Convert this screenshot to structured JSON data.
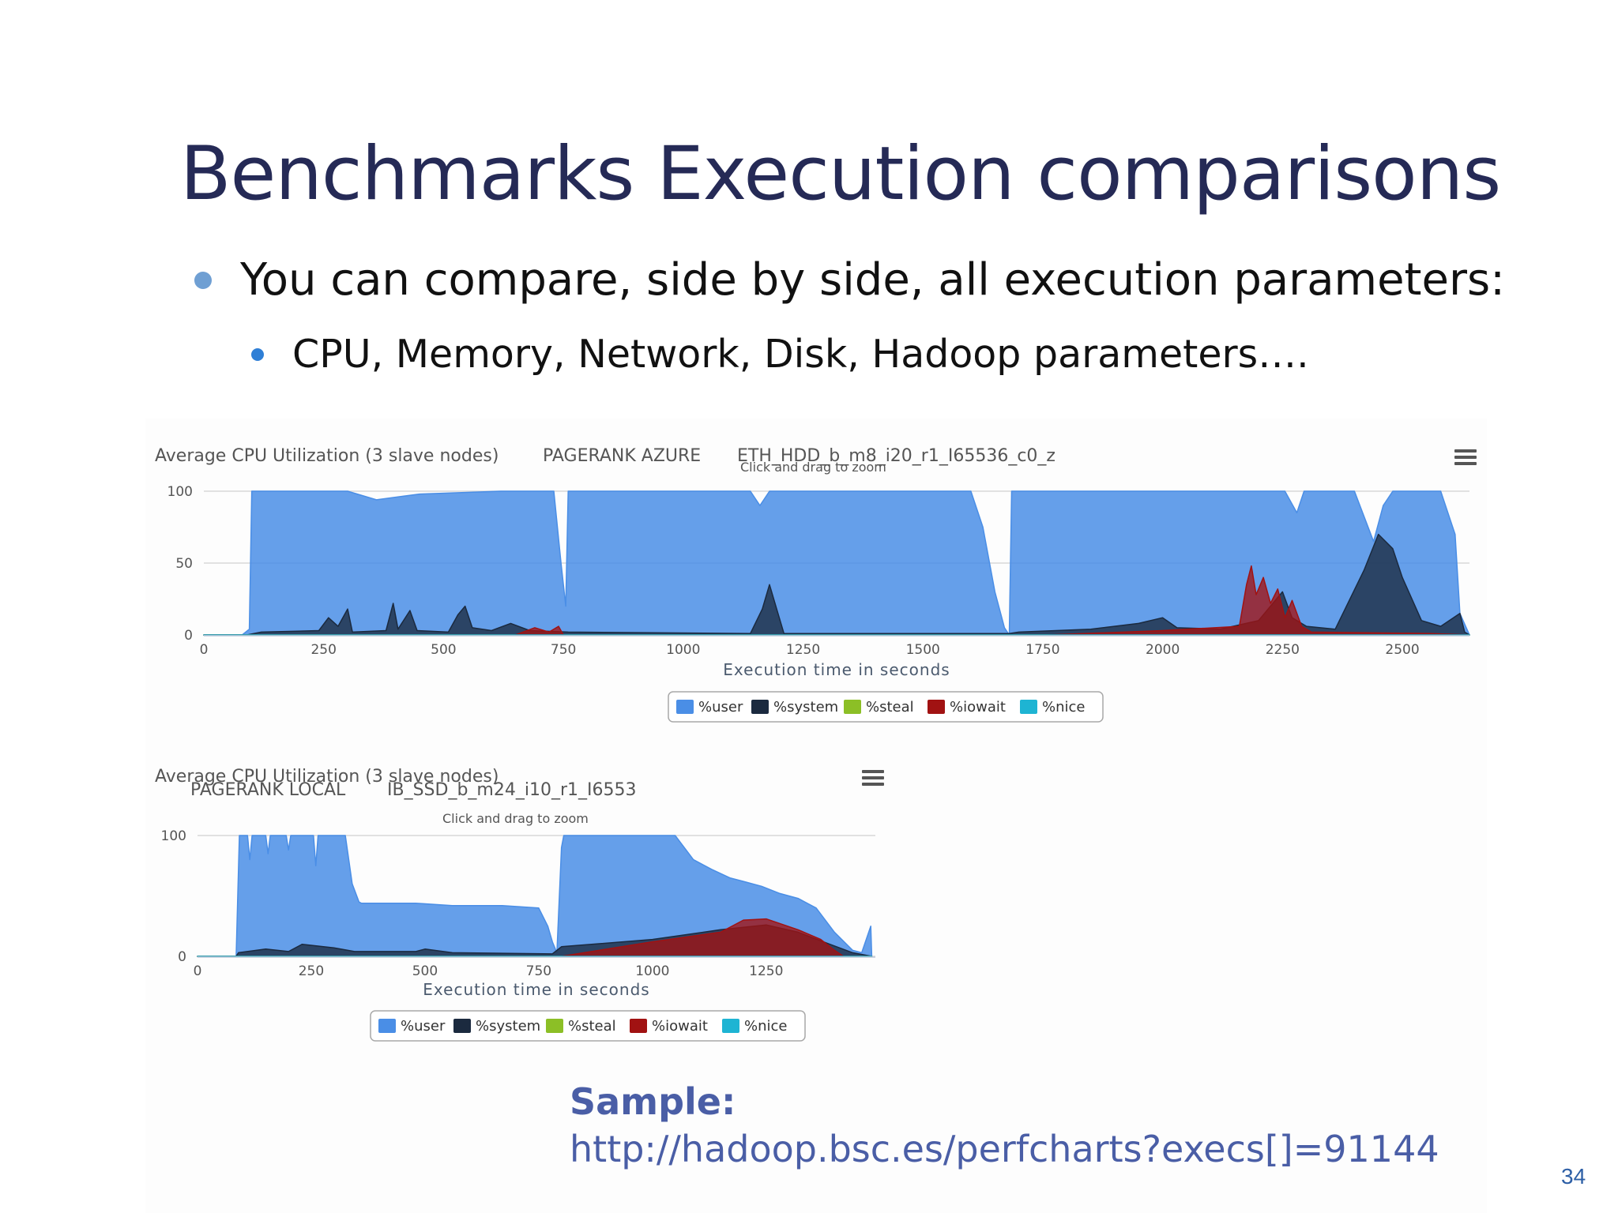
{
  "slide": {
    "title": "Benchmarks Execution comparisons",
    "bullet_1": "You can compare, side by side, all execution parameters:",
    "bullet_2": "CPU, Memory, Network, Disk, Hadoop parameters….",
    "sample_label": "Sample:",
    "sample_url": "http://hadoop.bsc.es/perfcharts?execs[]=91144",
    "page_number": "34"
  },
  "colors": {
    "title": "#252a56",
    "bullet_1_marker": "#6f9fd3",
    "bullet_2_marker": "#2f7fd6",
    "user": "#4a8ee6",
    "system": "#1b2a3f",
    "steal": "#8cbf26",
    "iowait": "#a11212",
    "nice": "#1eb4d3",
    "link": "#4a5ea6"
  },
  "chart_data": [
    {
      "type": "area",
      "title": "Average CPU Utilization (3 slave nodes)",
      "subtitle_benchmark": "PAGERANK AZURE",
      "subtitle_exec": "ETH_HDD_b_m8_i20_r1_I65536_c0_z",
      "zoom_hint": "Click and drag to zoom",
      "xlabel": "Execution time in seconds",
      "ylabel": "",
      "xlim": [
        0,
        2640
      ],
      "ylim": [
        0,
        100
      ],
      "x_ticks": [
        "0",
        "250",
        "500",
        "750",
        "1000",
        "1250",
        "1500",
        "1750",
        "2000",
        "2250",
        "2500"
      ],
      "y_ticks": [
        "0",
        "50",
        "100"
      ],
      "stacked": false,
      "legend": [
        "%user",
        "%system",
        "%steal",
        "%iowait",
        "%nice"
      ],
      "legend_position": "bottom-center",
      "grid": true,
      "series": [
        {
          "name": "%user",
          "points": [
            [
              0,
              0
            ],
            [
              80,
              0
            ],
            [
              95,
              4
            ],
            [
              100,
              100
            ],
            [
              300,
              100
            ],
            [
              360,
              94
            ],
            [
              450,
              98
            ],
            [
              620,
              100
            ],
            [
              730,
              100
            ],
            [
              745,
              50
            ],
            [
              755,
              20
            ],
            [
              760,
              100
            ],
            [
              1140,
              100
            ],
            [
              1160,
              90
            ],
            [
              1180,
              100
            ],
            [
              1600,
              100
            ],
            [
              1625,
              75
            ],
            [
              1650,
              30
            ],
            [
              1670,
              5
            ],
            [
              1680,
              0
            ],
            [
              1685,
              100
            ],
            [
              1750,
              100
            ],
            [
              2200,
              100
            ],
            [
              2255,
              100
            ],
            [
              2280,
              85
            ],
            [
              2295,
              100
            ],
            [
              2400,
              100
            ],
            [
              2440,
              65
            ],
            [
              2460,
              90
            ],
            [
              2480,
              100
            ],
            [
              2580,
              100
            ],
            [
              2610,
              70
            ],
            [
              2620,
              15
            ],
            [
              2640,
              0
            ]
          ]
        },
        {
          "name": "%system",
          "points": [
            [
              0,
              0
            ],
            [
              90,
              0
            ],
            [
              120,
              2
            ],
            [
              240,
              3
            ],
            [
              260,
              12
            ],
            [
              280,
              6
            ],
            [
              300,
              18
            ],
            [
              310,
              2
            ],
            [
              380,
              3
            ],
            [
              395,
              22
            ],
            [
              405,
              4
            ],
            [
              430,
              17
            ],
            [
              445,
              3
            ],
            [
              510,
              2
            ],
            [
              530,
              14
            ],
            [
              545,
              20
            ],
            [
              560,
              5
            ],
            [
              600,
              3
            ],
            [
              640,
              8
            ],
            [
              680,
              3
            ],
            [
              760,
              2
            ],
            [
              1140,
              1
            ],
            [
              1165,
              18
            ],
            [
              1180,
              35
            ],
            [
              1195,
              18
            ],
            [
              1210,
              1
            ],
            [
              1680,
              1
            ],
            [
              1700,
              2
            ],
            [
              1850,
              4
            ],
            [
              1950,
              8
            ],
            [
              2000,
              12
            ],
            [
              2030,
              5
            ],
            [
              2120,
              4
            ],
            [
              2200,
              10
            ],
            [
              2250,
              30
            ],
            [
              2270,
              12
            ],
            [
              2300,
              6
            ],
            [
              2360,
              4
            ],
            [
              2420,
              45
            ],
            [
              2450,
              70
            ],
            [
              2480,
              60
            ],
            [
              2500,
              40
            ],
            [
              2540,
              10
            ],
            [
              2580,
              6
            ],
            [
              2620,
              15
            ],
            [
              2630,
              2
            ],
            [
              2640,
              0
            ]
          ]
        },
        {
          "name": "%steal",
          "points": [
            [
              0,
              0
            ],
            [
              2640,
              0
            ]
          ]
        },
        {
          "name": "%iowait",
          "points": [
            [
              0,
              0
            ],
            [
              650,
              0
            ],
            [
              690,
              5
            ],
            [
              720,
              2
            ],
            [
              740,
              6
            ],
            [
              750,
              0
            ],
            [
              1760,
              0
            ],
            [
              2000,
              3
            ],
            [
              2160,
              6
            ],
            [
              2175,
              35
            ],
            [
              2185,
              48
            ],
            [
              2195,
              28
            ],
            [
              2210,
              40
            ],
            [
              2225,
              22
            ],
            [
              2240,
              32
            ],
            [
              2255,
              12
            ],
            [
              2270,
              24
            ],
            [
              2290,
              6
            ],
            [
              2310,
              2
            ],
            [
              2560,
              1
            ],
            [
              2640,
              0
            ]
          ]
        },
        {
          "name": "%nice",
          "points": [
            [
              0,
              0
            ],
            [
              2640,
              0
            ]
          ]
        }
      ]
    },
    {
      "type": "area",
      "title": "Average CPU Utilization (3 slave nodes)",
      "subtitle_benchmark": "PAGERANK LOCAL",
      "subtitle_exec": "IB_SSD_b_m24_i10_r1_I6553",
      "zoom_hint": "Click and drag to zoom",
      "xlabel": "Execution time in seconds",
      "ylabel": "",
      "xlim": [
        0,
        1490
      ],
      "ylim": [
        0,
        100
      ],
      "x_ticks": [
        "0",
        "250",
        "500",
        "750",
        "1000",
        "1250"
      ],
      "y_ticks": [
        "0",
        "100"
      ],
      "stacked": false,
      "legend": [
        "%user",
        "%system",
        "%steal",
        "%iowait",
        "%nice"
      ],
      "legend_position": "bottom-center",
      "grid": true,
      "series": [
        {
          "name": "%user",
          "points": [
            [
              0,
              0
            ],
            [
              85,
              0
            ],
            [
              92,
              100
            ],
            [
              110,
              100
            ],
            [
              115,
              80
            ],
            [
              120,
              100
            ],
            [
              150,
              100
            ],
            [
              155,
              85
            ],
            [
              160,
              100
            ],
            [
              195,
              100
            ],
            [
              200,
              88
            ],
            [
              205,
              100
            ],
            [
              255,
              100
            ],
            [
              260,
              75
            ],
            [
              265,
              100
            ],
            [
              325,
              100
            ],
            [
              340,
              60
            ],
            [
              355,
              45
            ],
            [
              360,
              44
            ],
            [
              480,
              44
            ],
            [
              560,
              42
            ],
            [
              600,
              42
            ],
            [
              670,
              42
            ],
            [
              750,
              40
            ],
            [
              770,
              25
            ],
            [
              780,
              12
            ],
            [
              790,
              3
            ],
            [
              800,
              90
            ],
            [
              805,
              100
            ],
            [
              1050,
              100
            ],
            [
              1090,
              80
            ],
            [
              1130,
              72
            ],
            [
              1170,
              65
            ],
            [
              1200,
              62
            ],
            [
              1240,
              58
            ],
            [
              1280,
              52
            ],
            [
              1320,
              48
            ],
            [
              1360,
              40
            ],
            [
              1400,
              20
            ],
            [
              1440,
              5
            ],
            [
              1460,
              3
            ],
            [
              1480,
              25
            ],
            [
              1482,
              0
            ]
          ]
        },
        {
          "name": "%system",
          "points": [
            [
              0,
              0
            ],
            [
              85,
              0
            ],
            [
              90,
              3
            ],
            [
              150,
              6
            ],
            [
              200,
              4
            ],
            [
              230,
              10
            ],
            [
              300,
              7
            ],
            [
              345,
              4
            ],
            [
              480,
              4
            ],
            [
              500,
              6
            ],
            [
              560,
              3
            ],
            [
              780,
              2
            ],
            [
              800,
              8
            ],
            [
              1000,
              14
            ],
            [
              1150,
              22
            ],
            [
              1250,
              26
            ],
            [
              1320,
              20
            ],
            [
              1390,
              10
            ],
            [
              1440,
              3
            ],
            [
              1482,
              0
            ]
          ]
        },
        {
          "name": "%steal",
          "points": [
            [
              0,
              0
            ],
            [
              1482,
              0
            ]
          ]
        },
        {
          "name": "%iowait",
          "points": [
            [
              0,
              0
            ],
            [
              800,
              0
            ],
            [
              1000,
              12
            ],
            [
              1150,
              20
            ],
            [
              1200,
              30
            ],
            [
              1250,
              31
            ],
            [
              1320,
              22
            ],
            [
              1370,
              14
            ],
            [
              1400,
              5
            ],
            [
              1420,
              0
            ],
            [
              1482,
              0
            ]
          ]
        },
        {
          "name": "%nice",
          "points": [
            [
              0,
              0
            ],
            [
              1482,
              0
            ]
          ]
        }
      ]
    }
  ]
}
